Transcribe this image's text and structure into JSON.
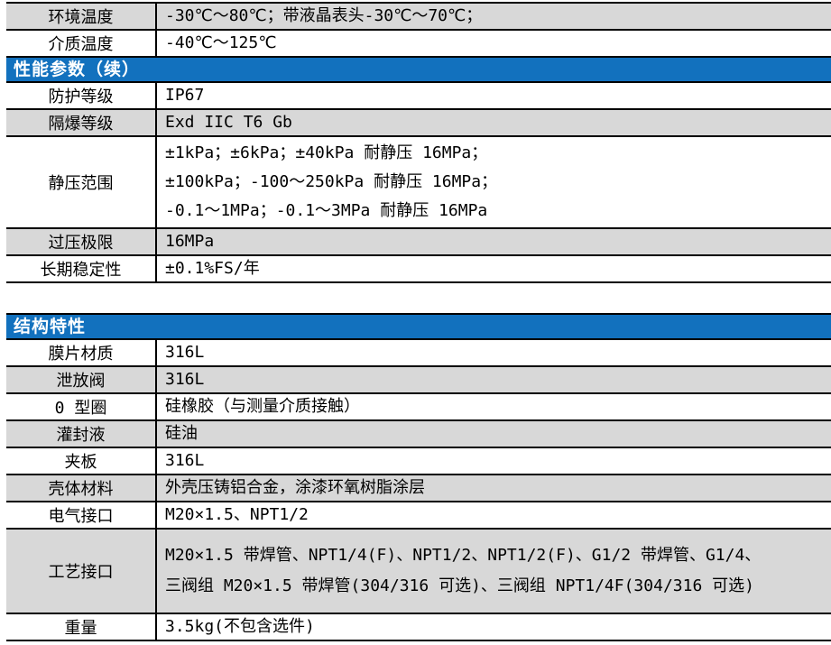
{
  "colors": {
    "header_bg": "#1271BE",
    "header_text": "#FFFFFF",
    "shade_bg": "#D8D8D8",
    "row_bg": "#FFFFFF",
    "border": "#000000",
    "text": "#000000"
  },
  "tables": [
    {
      "name": "performance-parameters",
      "rows": [
        {
          "type": "data",
          "shade": true,
          "label": "环境温度",
          "lines": [
            "-30℃～80℃；带液晶表头-30℃～70℃；"
          ]
        },
        {
          "type": "data",
          "shade": false,
          "label": "介质温度",
          "lines": [
            "-40℃～125℃"
          ]
        },
        {
          "type": "header",
          "label": "性能参数（续）"
        },
        {
          "type": "data",
          "shade": false,
          "label": "防护等级",
          "lines": [
            "IP67"
          ]
        },
        {
          "type": "data",
          "shade": true,
          "label": "隔爆等级",
          "lines": [
            "Exd IIC T6 Gb"
          ]
        },
        {
          "type": "data",
          "shade": false,
          "label": "静压范围",
          "lines": [
            "±1kPa；±6kPa；±40kPa 耐静压 16MPa；",
            "±100kPa；-100～250kPa 耐静压 16MPa；",
            "-0.1～1MPa；-0.1～3MPa 耐静压 16MPa"
          ]
        },
        {
          "type": "data",
          "shade": true,
          "label": "过压极限",
          "lines": [
            "16MPa"
          ]
        },
        {
          "type": "data",
          "shade": false,
          "label": "长期稳定性",
          "lines": [
            "±0.1%FS/年"
          ]
        }
      ]
    },
    {
      "name": "structural-characteristics",
      "rows": [
        {
          "type": "header",
          "label": "结构特性"
        },
        {
          "type": "data",
          "shade": false,
          "label": "膜片材质",
          "lines": [
            "316L"
          ]
        },
        {
          "type": "data",
          "shade": true,
          "label": "泄放阀",
          "lines": [
            "316L"
          ]
        },
        {
          "type": "data",
          "shade": false,
          "label": "0 型圈",
          "lines": [
            "硅橡胶（与测量介质接触）"
          ]
        },
        {
          "type": "data",
          "shade": true,
          "label": "灌封液",
          "lines": [
            "硅油"
          ]
        },
        {
          "type": "data",
          "shade": false,
          "label": "夹板",
          "lines": [
            "316L"
          ]
        },
        {
          "type": "data",
          "shade": true,
          "label": "壳体材料",
          "lines": [
            "外壳压铸铝合金，涂漆环氧树脂涂层"
          ]
        },
        {
          "type": "data",
          "shade": false,
          "label": "电气接口",
          "lines": [
            "M20×1.5、NPT1/2"
          ]
        },
        {
          "type": "data",
          "shade": true,
          "label": "工艺接口",
          "lines": [
            "M20×1.5 带焊管、NPT1/4(F)、NPT1/2、NPT1/2(F)、G1/2 带焊管、G1/4、",
            "三阀组 M20×1.5 带焊管(304/316 可选)、三阀组 NPT1/4F(304/316 可选)"
          ]
        },
        {
          "type": "data",
          "shade": false,
          "label": "重量",
          "lines": [
            "3.5kg(不包含选件)"
          ]
        }
      ]
    }
  ]
}
